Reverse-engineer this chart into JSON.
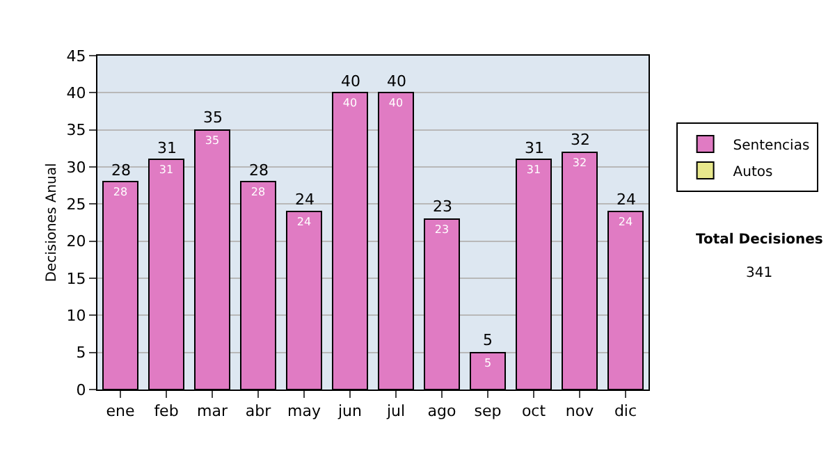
{
  "chart_data": {
    "type": "bar",
    "ylabel": "Decisiones Anual",
    "categories": [
      "ene",
      "feb",
      "mar",
      "abr",
      "may",
      "jun",
      "jul",
      "ago",
      "sep",
      "oct",
      "nov",
      "dic"
    ],
    "series": [
      {
        "name": "Sentencias",
        "color": "#e07bc3",
        "values": [
          28,
          31,
          35,
          28,
          24,
          40,
          40,
          23,
          5,
          31,
          32,
          24
        ],
        "value_labels": [
          "28",
          "31",
          "35",
          "28",
          "24",
          "40",
          "40",
          "23",
          "5",
          "31",
          "32",
          "24"
        ]
      },
      {
        "name": "Autos",
        "color": "#e8e88c",
        "values": [
          null,
          null,
          null,
          null,
          null,
          null,
          null,
          null,
          null,
          null,
          null,
          null
        ]
      }
    ],
    "stacked": true,
    "totals": [
      "28",
      "31",
      "35",
      "28",
      "24",
      "40",
      "40",
      "23",
      "5",
      "31",
      "32",
      "24"
    ],
    "ylim": [
      0,
      45
    ],
    "yticks": [
      0,
      5,
      10,
      15,
      20,
      25,
      30,
      35,
      40,
      45
    ],
    "grid": "y",
    "legend": "right",
    "annotations": [
      "Total Decisiones",
      "341"
    ]
  }
}
